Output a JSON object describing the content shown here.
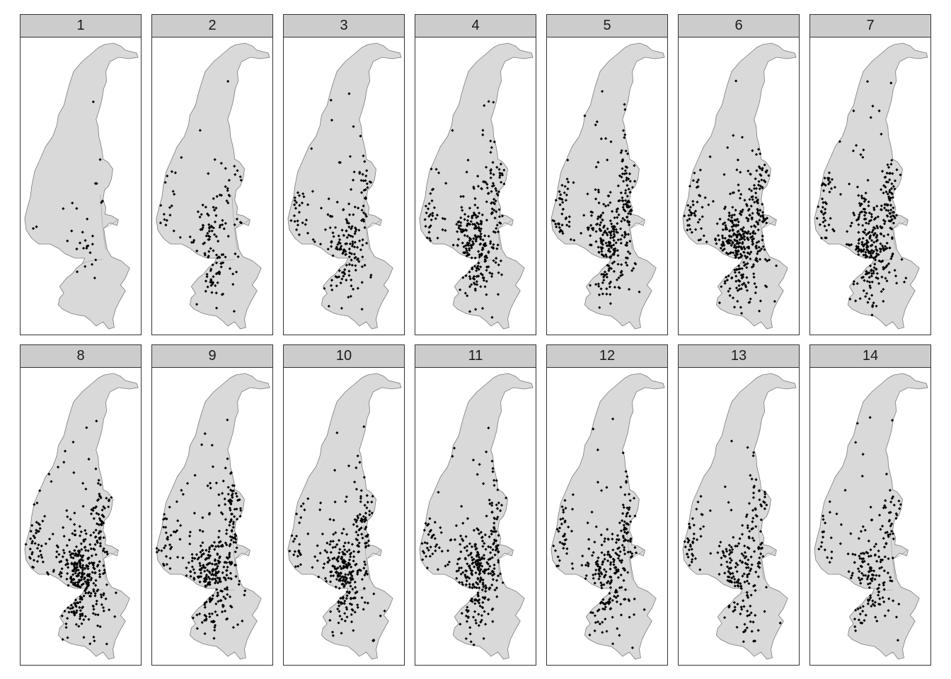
{
  "figure": {
    "panel_labels": [
      "1",
      "2",
      "3",
      "4",
      "5",
      "6",
      "7",
      "8",
      "9",
      "10",
      "11",
      "12",
      "13",
      "14"
    ],
    "point_density": [
      30,
      150,
      200,
      320,
      330,
      420,
      360,
      420,
      360,
      320,
      330,
      280,
      250,
      200
    ],
    "colors": {
      "strip": "#cccccc",
      "region_fill": "#d9d9d9",
      "region_stroke": "#7a7a7a",
      "point": "#000000"
    },
    "marker": "diamond"
  }
}
